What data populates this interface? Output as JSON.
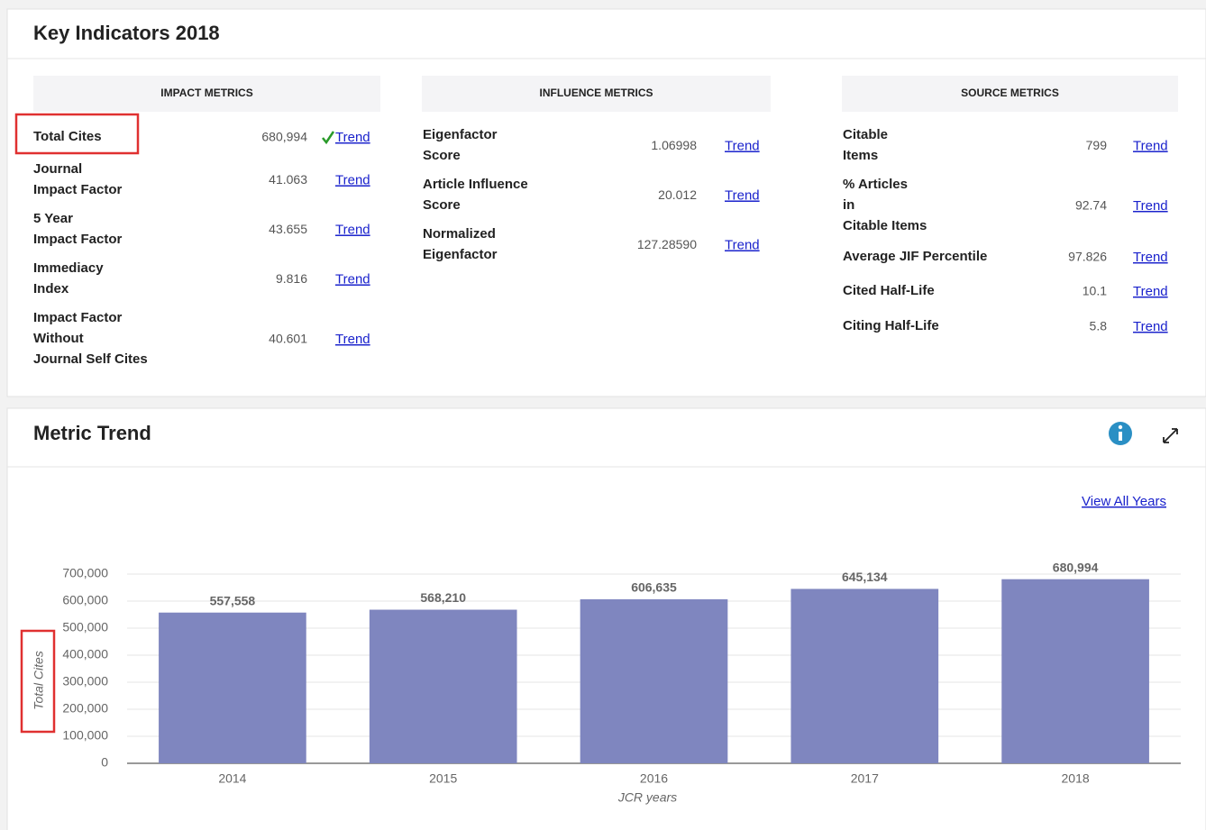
{
  "key_indicators": {
    "title": "Key Indicators 2018",
    "columns": [
      {
        "heading": "IMPACT METRICS",
        "rows": [
          {
            "label": [
              "Total Cites"
            ],
            "value": "680,994",
            "link": "Trend"
          },
          {
            "label": [
              "Journal",
              "Impact Factor"
            ],
            "value": "41.063",
            "link": "Trend"
          },
          {
            "label": [
              "5 Year",
              "Impact Factor"
            ],
            "value": "43.655",
            "link": "Trend"
          },
          {
            "label": [
              "Immediacy",
              "Index"
            ],
            "value": "9.816",
            "link": "Trend"
          },
          {
            "label": [
              "Impact Factor",
              "Without",
              "Journal Self Cites"
            ],
            "value": "40.601",
            "link": "Trend"
          }
        ]
      },
      {
        "heading": "INFLUENCE METRICS",
        "rows": [
          {
            "label": [
              "Eigenfactor",
              "Score"
            ],
            "value": "1.06998",
            "link": "Trend"
          },
          {
            "label": [
              "Article Influence",
              "Score"
            ],
            "value": "20.012",
            "link": "Trend"
          },
          {
            "label": [
              "Normalized",
              "Eigenfactor"
            ],
            "value": "127.28590",
            "link": "Trend"
          }
        ]
      },
      {
        "heading": "SOURCE METRICS",
        "rows": [
          {
            "label": [
              "Citable",
              "Items"
            ],
            "value": "799",
            "link": "Trend"
          },
          {
            "label": [
              "% Articles",
              "in",
              "Citable Items"
            ],
            "value": "92.74",
            "link": "Trend"
          },
          {
            "label": [
              "Average JIF Percentile"
            ],
            "value": "97.826",
            "link": "Trend"
          },
          {
            "label": [
              "Cited Half-Life"
            ],
            "value": "10.1",
            "link": "Trend"
          },
          {
            "label": [
              "Citing Half-Life"
            ],
            "value": "5.8",
            "link": "Trend"
          }
        ]
      }
    ]
  },
  "metric_trend": {
    "title": "Metric Trend",
    "link": "View All Years"
  },
  "chart_data": {
    "type": "bar",
    "categories": [
      "2014",
      "2015",
      "2016",
      "2017",
      "2018"
    ],
    "values": [
      557558,
      568210,
      606635,
      645134,
      680994
    ],
    "value_labels": [
      "557,558",
      "568,210",
      "606,635",
      "645,134",
      "680,994"
    ],
    "color": "#7f86bf",
    "x_label": "JCR years",
    "y_label": "Total Cites",
    "ylim": [
      0,
      700000
    ],
    "yticks": [
      0,
      {
        "value": 100000,
        "label": "100,000"
      },
      {
        "value": 200000,
        "label": "200,000"
      },
      {
        "value": 300000,
        "label": "300,000"
      },
      {
        "value": 400000,
        "label": "400,000"
      },
      {
        "value": 500000,
        "label": "500,000"
      },
      {
        "value": 600000,
        "label": "600,000"
      },
      {
        "value": 700000,
        "label": "700,000"
      }
    ],
    "grid": true
  }
}
